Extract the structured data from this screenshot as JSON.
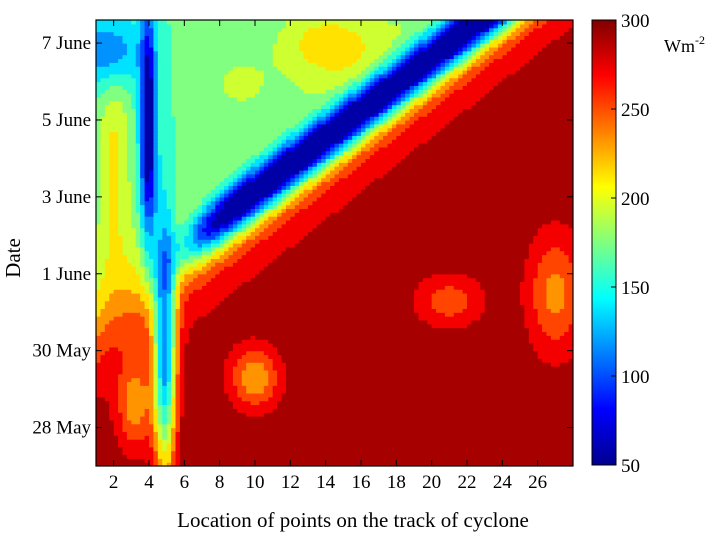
{
  "chart_data": {
    "type": "heatmap",
    "title": "",
    "xlabel": "Location of points on the track of cyclone",
    "ylabel": "Date",
    "xlim": [
      1,
      28
    ],
    "ylim": [
      0,
      11.6
    ],
    "x_ticks": [
      2,
      4,
      6,
      8,
      10,
      12,
      14,
      16,
      18,
      20,
      22,
      24,
      26
    ],
    "y_ticks": [
      {
        "value": 1,
        "label": "28 May"
      },
      {
        "value": 3,
        "label": "30 May"
      },
      {
        "value": 5,
        "label": "1 June"
      },
      {
        "value": 7,
        "label": "3 June"
      },
      {
        "value": 9,
        "label": "5 June"
      },
      {
        "value": 11,
        "label": "7 June"
      }
    ],
    "colorbar": {
      "min": 50,
      "max": 300,
      "ticks": [
        50,
        100,
        150,
        200,
        250,
        300
      ],
      "unit": "Wm",
      "unit_sup": "-2",
      "colormap": "jet"
    },
    "grid": false
  }
}
